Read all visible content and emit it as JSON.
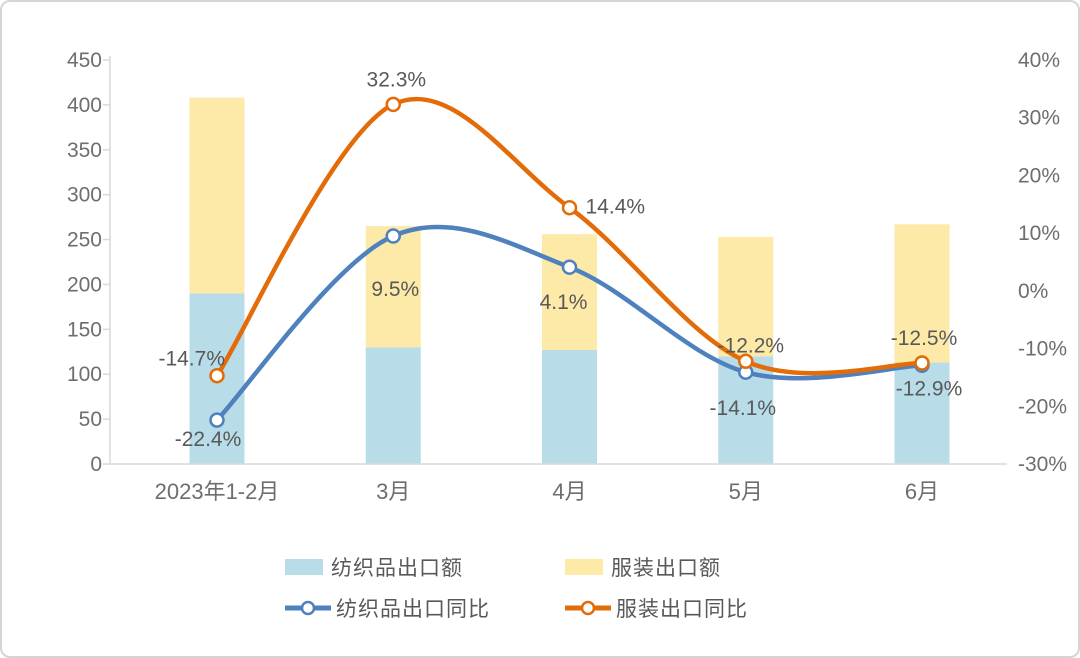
{
  "chart_data": {
    "type": "combo-bar-line",
    "title": "",
    "categories": [
      "2023年1-2月",
      "3月",
      "4月",
      "5月",
      "6月"
    ],
    "series": [
      {
        "name": "纺织品出口额",
        "type": "bar",
        "stacked": true,
        "axis": "left",
        "color": "#B8DCE8",
        "values": [
          190,
          130,
          127,
          120,
          113
        ]
      },
      {
        "name": "服装出口额",
        "type": "bar",
        "stacked": true,
        "axis": "left",
        "color": "#FDE9A8",
        "values": [
          218,
          135,
          129,
          133,
          154
        ]
      },
      {
        "name": "纺织品出口同比",
        "type": "line",
        "axis": "right",
        "color": "#4E81BD",
        "marker": "circle",
        "values": [
          -22.4,
          9.5,
          4.1,
          -14.1,
          -12.9
        ],
        "labels": [
          "-22.4%",
          "9.5%",
          "4.1%",
          "-14.1%",
          "-12.9%"
        ]
      },
      {
        "name": "服装出口同比",
        "type": "line",
        "axis": "right",
        "color": "#E36C09",
        "marker": "circle",
        "values": [
          -14.7,
          32.3,
          14.4,
          -12.2,
          -12.5
        ],
        "labels": [
          "-14.7%",
          "32.3%",
          "14.4%",
          "-12.2%",
          "-12.5%"
        ]
      }
    ],
    "left_axis": {
      "min": 0,
      "max": 450,
      "step": 50,
      "ticks": [
        "0",
        "50",
        "100",
        "150",
        "200",
        "250",
        "300",
        "350",
        "400",
        "450"
      ]
    },
    "right_axis": {
      "min": -30,
      "max": 40,
      "step": 10,
      "ticks": [
        "-30%",
        "-20%",
        "-10%",
        "0%",
        "10%",
        "20%",
        "30%",
        "40%"
      ]
    },
    "grid": false,
    "legend_position": "bottom"
  },
  "colors": {
    "background": "#FFFFFF",
    "border": "#D5D5D5",
    "axis_line": "#D9D9D9",
    "axis_text": "#6E6E6E",
    "data_label_text": "#595959"
  }
}
